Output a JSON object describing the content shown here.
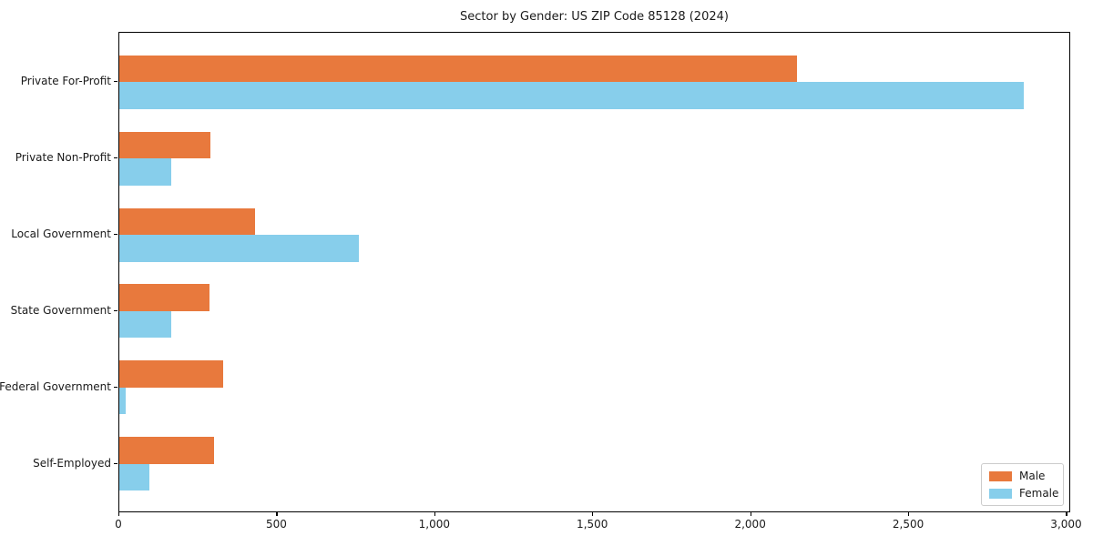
{
  "chart_data": {
    "type": "bar",
    "orientation": "horizontal",
    "title": "Sector by Gender: US ZIP Code 85128 (2024)",
    "categories": [
      "Private For-Profit",
      "Private Non-Profit",
      "Local Government",
      "State Government",
      "Federal Government",
      "Self-Employed"
    ],
    "series": [
      {
        "name": "Male",
        "color": "#e8793d",
        "values": [
          2150,
          290,
          430,
          285,
          330,
          300
        ]
      },
      {
        "name": "Female",
        "color": "#87ceeb",
        "values": [
          2870,
          165,
          760,
          165,
          20,
          95
        ]
      }
    ],
    "xlim": [
      0,
      3013
    ],
    "x_ticks": [
      {
        "value": 0,
        "label": "0"
      },
      {
        "value": 500,
        "label": "500"
      },
      {
        "value": 1000,
        "label": "1,000"
      },
      {
        "value": 1500,
        "label": "1,500"
      },
      {
        "value": 2000,
        "label": "2,000"
      },
      {
        "value": 2500,
        "label": "2,500"
      },
      {
        "value": 3000,
        "label": "3,000"
      }
    ],
    "legend": {
      "position": "lower right",
      "entries": [
        "Male",
        "Female"
      ]
    },
    "grid": false,
    "axis_color": "#000000",
    "text_color": "#1a1a1a"
  }
}
